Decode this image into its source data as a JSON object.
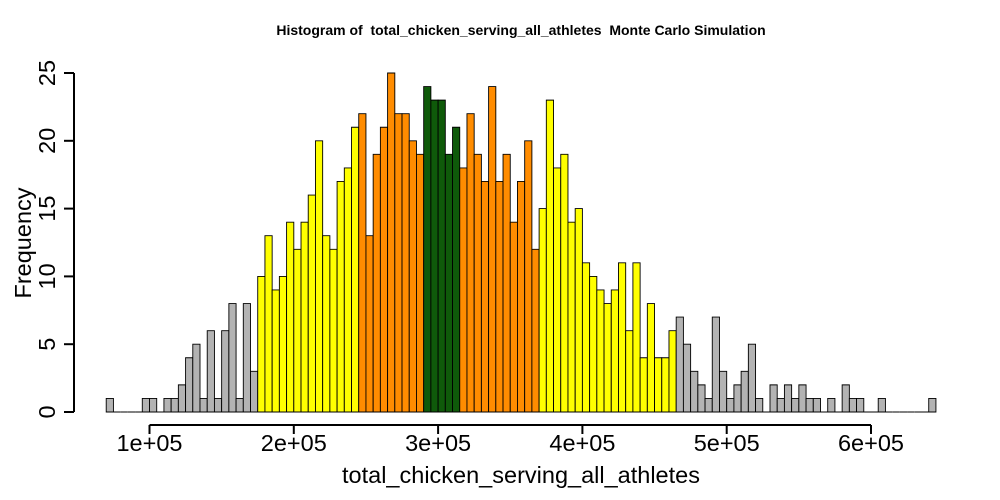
{
  "chart_data": {
    "type": "bar",
    "title": "Histogram of  total_chicken_serving_all_athletes  Monte Carlo Simulation",
    "xlabel": "total_chicken_serving_all_athletes",
    "ylabel": "Frequency",
    "x_ticks": {
      "values": [
        100000,
        200000,
        300000,
        400000,
        500000,
        600000
      ],
      "labels": [
        "1e+05",
        "2e+05",
        "3e+05",
        "4e+05",
        "5e+05",
        "6e+05"
      ]
    },
    "y_ticks": {
      "values": [
        0,
        5,
        10,
        15,
        20,
        25
      ],
      "labels": [
        "0",
        "5",
        "10",
        "15",
        "20",
        "25"
      ]
    },
    "xlim": [
      70000,
      645000
    ],
    "ylim": [
      0,
      25
    ],
    "grid": false,
    "legend": "none",
    "bin_edges": [
      70000,
      75000,
      80000,
      85000,
      90000,
      95000,
      100000,
      105000,
      110000,
      115000,
      120000,
      125000,
      130000,
      135000,
      140000,
      145000,
      150000,
      155000,
      160000,
      165000,
      170000,
      175000,
      180000,
      185000,
      190000,
      195000,
      200000,
      205000,
      210000,
      215000,
      220000,
      225000,
      230000,
      235000,
      240000,
      245000,
      250000,
      255000,
      260000,
      265000,
      270000,
      275000,
      280000,
      285000,
      290000,
      295000,
      300000,
      305000,
      310000,
      315000,
      320000,
      325000,
      330000,
      335000,
      340000,
      345000,
      350000,
      355000,
      360000,
      365000,
      370000,
      375000,
      380000,
      385000,
      390000,
      395000,
      400000,
      405000,
      410000,
      415000,
      420000,
      425000,
      430000,
      435000,
      440000,
      445000,
      450000,
      455000,
      460000,
      465000,
      470000,
      475000,
      480000,
      485000,
      490000,
      495000,
      500000,
      505000,
      510000,
      515000,
      520000,
      525000,
      530000,
      535000,
      540000,
      545000,
      550000,
      555000,
      560000,
      565000,
      570000,
      575000,
      580000,
      585000,
      590000,
      595000,
      600000,
      605000,
      610000,
      615000,
      620000,
      625000,
      630000,
      635000,
      640000,
      645000
    ],
    "values": [
      1,
      0,
      0,
      0,
      0,
      1,
      1,
      0,
      1,
      1,
      2,
      4,
      5,
      1,
      6,
      1,
      6,
      8,
      1,
      8,
      3,
      10,
      13,
      9,
      10,
      14,
      12,
      14,
      16,
      20,
      13,
      12,
      17,
      18,
      21,
      22,
      13,
      19,
      21,
      25,
      22,
      22,
      20,
      19,
      24,
      23,
      23,
      19,
      21,
      18,
      22,
      19,
      17,
      24,
      17,
      19,
      14,
      17,
      20,
      12,
      15,
      23,
      18,
      19,
      14,
      15,
      11,
      10,
      9,
      8,
      9,
      11,
      6,
      11,
      4,
      8,
      4,
      4,
      6,
      7,
      5,
      3,
      2,
      1,
      7,
      3,
      1,
      2,
      3,
      5,
      1,
      0,
      2,
      1,
      2,
      1,
      2,
      1,
      1,
      0,
      1,
      0,
      2,
      1,
      1,
      0,
      0,
      1,
      0,
      0,
      0,
      0,
      0,
      0,
      1
    ],
    "color_bands": [
      {
        "from": 70000,
        "to": 175000,
        "color": "#b3b3b3"
      },
      {
        "from": 175000,
        "to": 245000,
        "color": "#ffff00"
      },
      {
        "from": 245000,
        "to": 290000,
        "color": "#ff8c00"
      },
      {
        "from": 290000,
        "to": 315000,
        "color": "#0f5a0a"
      },
      {
        "from": 315000,
        "to": 370000,
        "color": "#ff8c00"
      },
      {
        "from": 370000,
        "to": 465000,
        "color": "#ffff00"
      },
      {
        "from": 465000,
        "to": 645000,
        "color": "#b3b3b3"
      }
    ]
  }
}
